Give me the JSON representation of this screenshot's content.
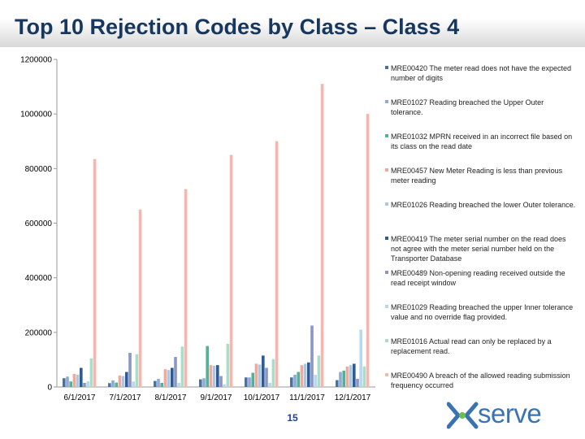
{
  "title": "Top 10 Rejection Codes by Class – Class 4",
  "page_number": "15",
  "logo": {
    "text": "serve",
    "mark_icon": "xoserve-x-mark-icon"
  },
  "chart_data": {
    "type": "bar",
    "title": "Top 10 Rejection Codes by Class – Class 4",
    "xlabel": "",
    "ylabel": "",
    "ylim": [
      0,
      1200000
    ],
    "yticks": [
      0,
      200000,
      400000,
      600000,
      800000,
      1000000,
      1200000
    ],
    "ytick_labels": [
      "0",
      "200000",
      "400000",
      "600000",
      "800000",
      "1000000",
      "1200000"
    ],
    "grid": false,
    "legend_position": "right",
    "categories": [
      "6/1/2017",
      "7/1/2017",
      "8/1/2017",
      "9/1/2017",
      "10/1/2017",
      "11/1/2017",
      "12/1/2017"
    ],
    "series": [
      {
        "name": "MRE00420 The meter read does not have the expected number of digits",
        "color": "#4a6fa5",
        "values": [
          32000,
          14000,
          22000,
          28000,
          35000,
          35000,
          25000
        ]
      },
      {
        "name": "MRE01027 Reading breached the Upper Outer tolerance.",
        "color": "#8faad9",
        "values": [
          38000,
          24000,
          30000,
          32000,
          35000,
          45000,
          55000
        ]
      },
      {
        "name": "MRE01032 MPRN received in an incorrect file based on its class on the read date",
        "color": "#4fb399",
        "values": [
          20000,
          16000,
          15000,
          150000,
          52000,
          55000,
          60000
        ]
      },
      {
        "name": "MRE00457 New Meter Reading is less than previous meter reading",
        "color": "#f0a99a",
        "values": [
          48000,
          42000,
          65000,
          80000,
          85000,
          80000,
          75000
        ]
      },
      {
        "name": "MRE01026 Reading breached the lower Outer tolerance.",
        "color": "#a8c8e6",
        "values": [
          45000,
          40000,
          62000,
          78000,
          82000,
          85000,
          80000
        ]
      },
      {
        "name": "MRE00419 The meter serial number on the read does not agree with the meter serial number held on the Transporter Database",
        "color": "#2e5b95",
        "values": [
          70000,
          55000,
          70000,
          80000,
          115000,
          90000,
          85000
        ]
      },
      {
        "name": "MRE00489 Non-opening reading received outside the read receipt window",
        "color": "#8a96c4",
        "values": [
          15000,
          125000,
          110000,
          40000,
          70000,
          225000,
          30000
        ]
      },
      {
        "name": "MRE01029 Reading breached the upper Inner tolerance value and no override flag provided.",
        "color": "#b9d7ee",
        "values": [
          20000,
          20000,
          15000,
          10000,
          15000,
          45000,
          210000
        ]
      },
      {
        "name": "MRE01016 Actual read can only be replaced by a replacement read.",
        "color": "#a9dcc9",
        "values": [
          105000,
          120000,
          148000,
          158000,
          102000,
          115000,
          75000
        ]
      },
      {
        "name": "MRE00490 A breach of the allowed reading submission frequency occurred",
        "color": "#f5b7ab",
        "values": [
          835000,
          650000,
          725000,
          850000,
          900000,
          1110000,
          1000000
        ]
      }
    ]
  }
}
